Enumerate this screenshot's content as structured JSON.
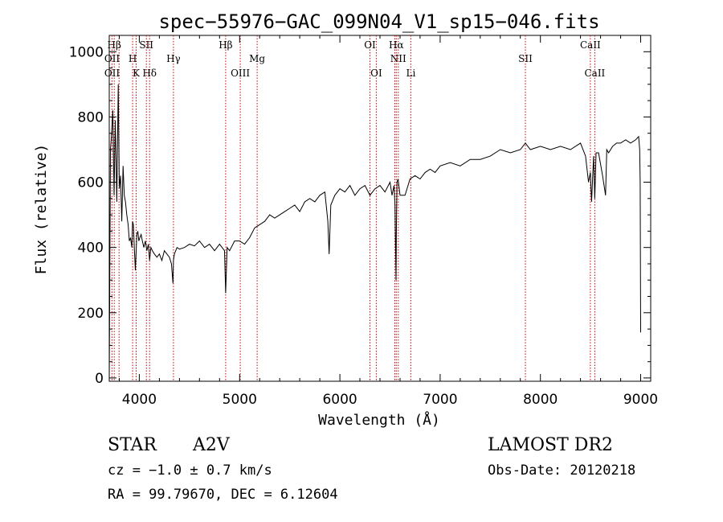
{
  "chart_data": {
    "type": "line",
    "title": "spec−55976−GAC_099N04_V1_sp15−046.fits",
    "xlabel": "Wavelength (Å)",
    "ylabel": "Flux (relative)",
    "xlim": [
      3700,
      9100
    ],
    "ylim": [
      -10,
      1050
    ],
    "x_ticks": [
      4000,
      5000,
      6000,
      7000,
      8000,
      9000
    ],
    "y_ticks": [
      0,
      200,
      400,
      600,
      800,
      1000
    ],
    "grid": false,
    "series": [
      {
        "x": [
          3700,
          3712,
          3722,
          3735,
          3748,
          3760,
          3775,
          3790,
          3800,
          3812,
          3825,
          3838,
          3850,
          3862,
          3875,
          3888,
          3900,
          3912,
          3925,
          3932,
          3940,
          3950,
          3960,
          3968,
          3975,
          3985,
          3995,
          4005,
          4018,
          4030,
          4045,
          4060,
          4075,
          4090,
          4102,
          4115,
          4130,
          4150,
          4175,
          4200,
          4225,
          4250,
          4275,
          4300,
          4320,
          4335,
          4340,
          4350,
          4375,
          4400,
          4450,
          4500,
          4550,
          4600,
          4650,
          4700,
          4750,
          4800,
          4850,
          4861,
          4875,
          4900,
          4950,
          5000,
          5050,
          5100,
          5150,
          5200,
          5250,
          5300,
          5350,
          5400,
          5450,
          5500,
          5550,
          5600,
          5650,
          5700,
          5750,
          5800,
          5850,
          5880,
          5893,
          5910,
          5950,
          6000,
          6050,
          6100,
          6150,
          6200,
          6250,
          6300,
          6350,
          6400,
          6450,
          6500,
          6520,
          6540,
          6550,
          6560,
          6563,
          6570,
          6580,
          6600,
          6650,
          6700,
          6750,
          6800,
          6850,
          6900,
          6950,
          7000,
          7100,
          7200,
          7300,
          7400,
          7500,
          7600,
          7700,
          7800,
          7850,
          7900,
          8000,
          8100,
          8200,
          8300,
          8400,
          8450,
          8480,
          8498,
          8510,
          8530,
          8542,
          8555,
          8580,
          8620,
          8650,
          8662,
          8680,
          8720,
          8760,
          8800,
          8850,
          8900,
          8950,
          8980,
          8990,
          8995,
          9000
        ],
        "y": [
          0,
          700,
          740,
          820,
          560,
          790,
          540,
          900,
          580,
          620,
          480,
          650,
          560,
          540,
          500,
          470,
          420,
          430,
          400,
          480,
          470,
          400,
          330,
          390,
          440,
          450,
          420,
          430,
          440,
          420,
          400,
          420,
          390,
          410,
          360,
          400,
          390,
          380,
          370,
          380,
          360,
          390,
          380,
          370,
          350,
          290,
          360,
          380,
          400,
          395,
          400,
          410,
          405,
          420,
          400,
          410,
          390,
          410,
          390,
          260,
          400,
          390,
          420,
          420,
          410,
          430,
          460,
          470,
          480,
          500,
          490,
          500,
          510,
          520,
          530,
          510,
          540,
          550,
          540,
          560,
          570,
          480,
          380,
          530,
          560,
          580,
          570,
          590,
          560,
          580,
          590,
          560,
          580,
          590,
          570,
          600,
          560,
          590,
          530,
          300,
          430,
          600,
          610,
          560,
          560,
          610,
          620,
          610,
          630,
          640,
          630,
          650,
          660,
          650,
          670,
          670,
          680,
          700,
          690,
          700,
          720,
          700,
          710,
          700,
          710,
          700,
          720,
          680,
          600,
          630,
          540,
          680,
          550,
          690,
          690,
          620,
          560,
          700,
          690,
          710,
          720,
          720,
          730,
          720,
          730,
          740,
          700,
          600,
          140
        ]
      }
    ],
    "line_labels": {
      "top": [
        {
          "wave": 3750,
          "text": "Hβ"
        },
        {
          "wave": 3728,
          "text": "OII"
        },
        {
          "wave": 3933,
          "text": "H"
        },
        {
          "wave": 3968,
          "text": "K"
        },
        {
          "wave": 4070,
          "text": "SII"
        },
        {
          "wave": 4102,
          "text": "Hδ"
        },
        {
          "wave": 4340,
          "text": "Hγ"
        },
        {
          "wave": 4861,
          "text": "Hβ"
        },
        {
          "wave": 5007,
          "text": "OIII"
        },
        {
          "wave": 5175,
          "text": "Mg"
        },
        {
          "wave": 6300,
          "text": "OI"
        },
        {
          "wave": 6363,
          "text": "OI"
        },
        {
          "wave": 6563,
          "text": "Hα"
        },
        {
          "wave": 6583,
          "text": "NII"
        },
        {
          "wave": 6708,
          "text": "Li"
        },
        {
          "wave": 7850,
          "text": "SII"
        },
        {
          "wave": 8498,
          "text": "CaII"
        },
        {
          "wave": 8542,
          "text": "CaII"
        },
        {
          "wave": 3728,
          "text": "OII"
        }
      ]
    },
    "line_marker_waves": [
      3727,
      3750,
      3798,
      3933,
      3968,
      4070,
      4102,
      4340,
      4861,
      5007,
      5175,
      6300,
      6363,
      6548,
      6563,
      6583,
      6708,
      7850,
      8498,
      8542
    ]
  },
  "info": {
    "object_class": "STAR",
    "subclass": "A2V",
    "cz": "cz = −1.0 ± 0.7 km/s",
    "coords": "RA =  99.79670, DEC =   6.12604",
    "survey": "LAMOST DR2",
    "obs_date": "Obs-Date: 20120218"
  }
}
